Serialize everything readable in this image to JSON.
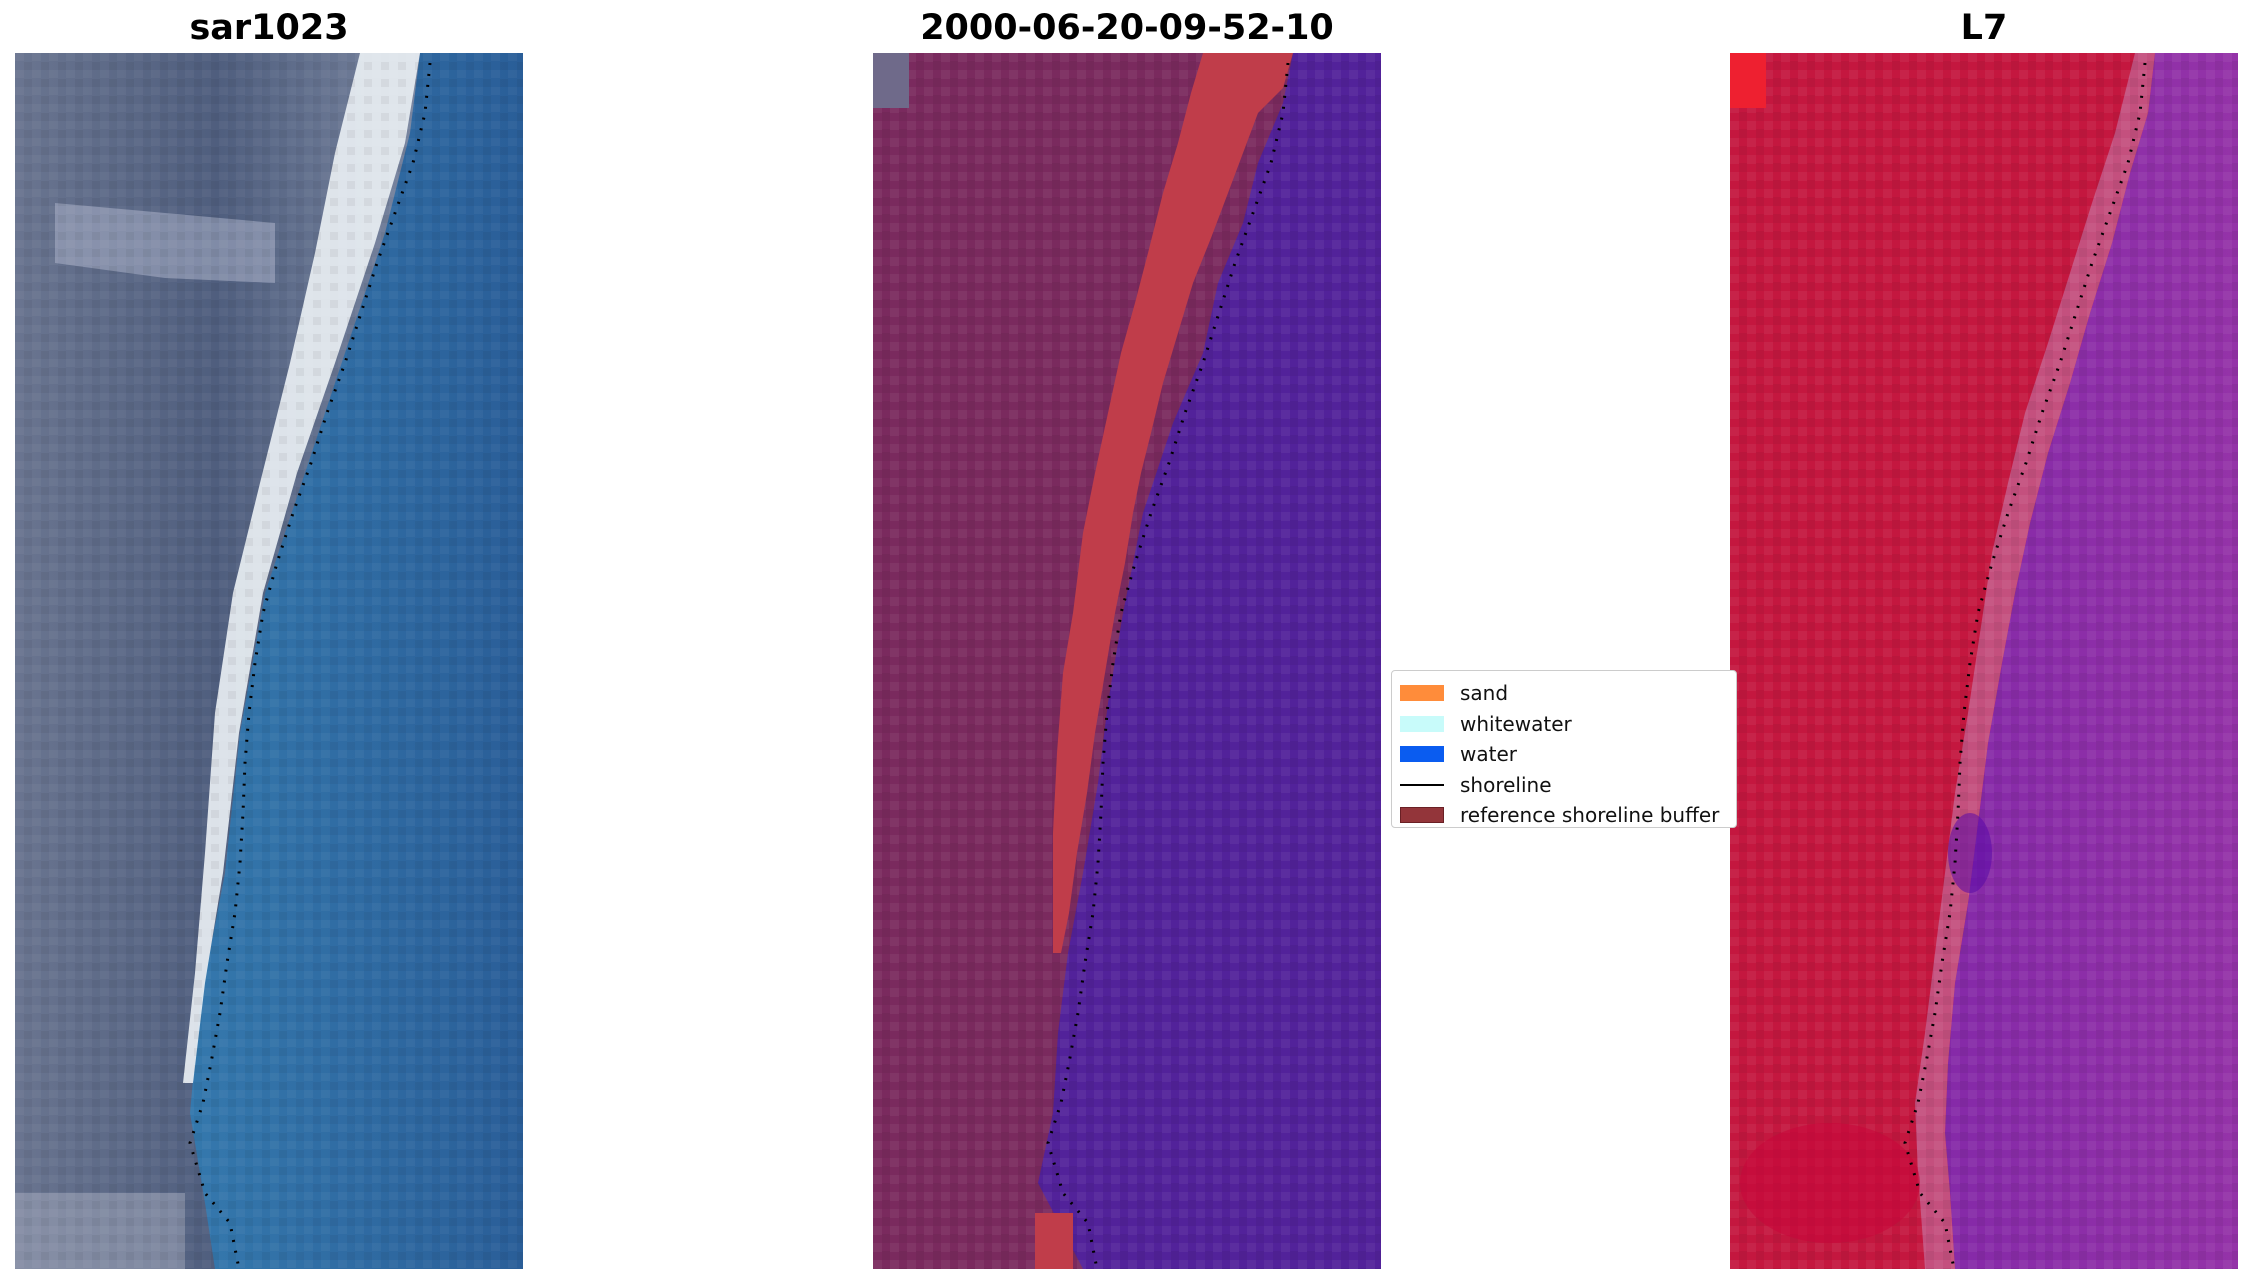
{
  "titles": {
    "left": "sar1023",
    "center": "2000-06-20-09-52-10",
    "right": "L7"
  },
  "legend": {
    "items": [
      {
        "label": "sand",
        "type": "patch",
        "color": "#ff8c3a"
      },
      {
        "label": "whitewater",
        "type": "patch",
        "color": "#c8fbfa"
      },
      {
        "label": "water",
        "type": "patch",
        "color": "#0a5cf0"
      },
      {
        "label": "shoreline",
        "type": "line",
        "color": "#000000"
      },
      {
        "label": "reference shoreline buffer",
        "type": "patch",
        "color": "#93353a"
      }
    ]
  },
  "colors": {
    "rgb_land": "#5a6680",
    "rgb_beach": "#f0f4f6",
    "rgb_water": "#2e6fa8",
    "class_land": "#7a2a5e",
    "class_buffer": "#c03d4a",
    "class_water": "#52229a",
    "ndwi_land": "#c4173f",
    "ndwi_water": "#8a2aa8",
    "shoreline_dots": "#000000"
  }
}
